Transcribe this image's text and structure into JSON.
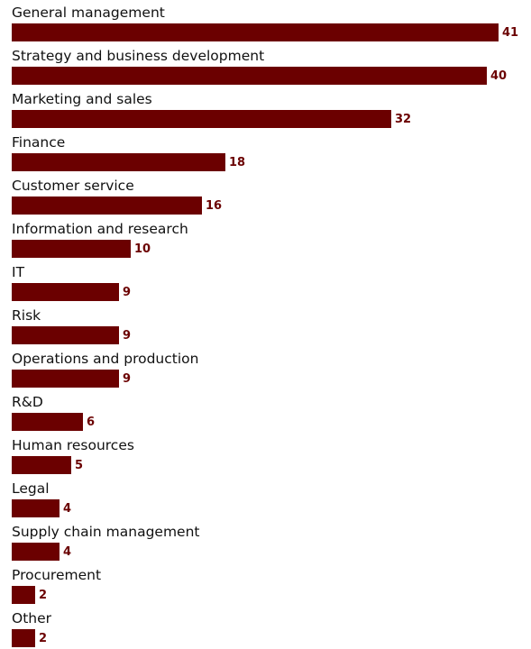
{
  "chart_data": {
    "type": "bar",
    "orientation": "horizontal",
    "categories": [
      "General management",
      "Strategy and business development",
      "Marketing and sales",
      "Finance",
      "Customer service",
      "Information and research",
      "IT",
      "Risk",
      "Operations and production",
      "R&D",
      "Human resources",
      "Legal",
      "Supply chain management",
      "Procurement",
      "Other"
    ],
    "values": [
      41,
      40,
      32,
      18,
      16,
      10,
      9,
      9,
      9,
      6,
      5,
      4,
      4,
      2,
      2
    ],
    "value_labels": [
      "41",
      "40",
      "32",
      "18",
      "16",
      "10",
      "9",
      "9",
      "9",
      "6",
      "5",
      "4",
      "4",
      "2",
      "2"
    ],
    "title": "",
    "xlabel": "",
    "ylabel": "",
    "xlim": [
      0,
      41
    ],
    "grid": false,
    "legend": "none",
    "bar_color": "#6b0000",
    "label_color": "#6b0000",
    "text_color": "#111111"
  }
}
